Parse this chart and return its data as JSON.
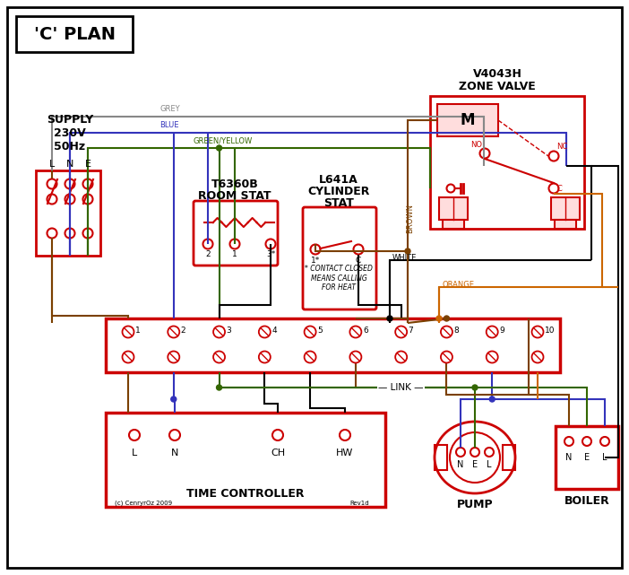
{
  "bg_color": "#ffffff",
  "red": "#cc0000",
  "blue": "#3333bb",
  "green": "#336600",
  "grey": "#888888",
  "brown": "#7b4000",
  "orange": "#cc6600",
  "black": "#000000",
  "pink_fill": "#ffdddd",
  "title": "'C' PLAN",
  "zone_valve_label1": "V4043H",
  "zone_valve_label2": "ZONE VALVE",
  "supply_label": "SUPPLY\n230V\n50Hz",
  "room_stat_label1": "T6360B",
  "room_stat_label2": "ROOM STAT",
  "cyl_stat_label1": "L641A",
  "cyl_stat_label2": "CYLINDER",
  "cyl_stat_label3": "STAT",
  "time_ctrl_label": "TIME CONTROLLER",
  "pump_label": "PUMP",
  "boiler_label": "BOILER",
  "link_label": "LINK",
  "contact_note": "* CONTACT CLOSED\nMEANS CALLING\nFOR HEAT",
  "copyright": "(c) CenryrOz 2009",
  "rev": "Rev1d"
}
